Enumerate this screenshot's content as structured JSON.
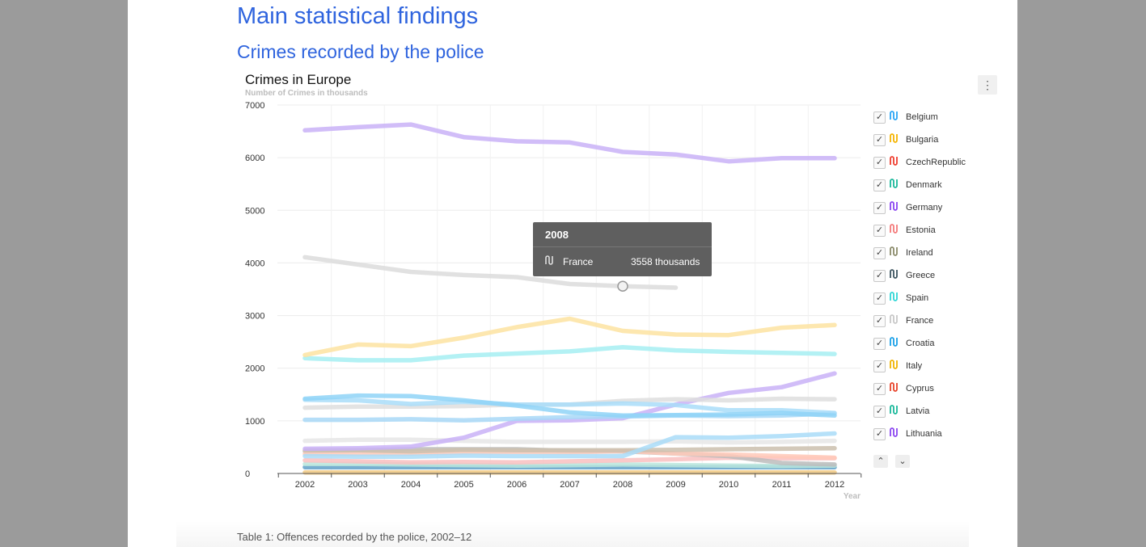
{
  "page": {
    "heading": "Main statistical findings",
    "subheading": "Crimes recorded by the police",
    "caption": "Table 1: Offences recorded by the police, 2002–12"
  },
  "controls": {
    "menu_icon": "vertical-dots-icon",
    "menu_label": "⋮",
    "page_up": "⌃",
    "page_down": "⌄",
    "check": "✓"
  },
  "tooltip": {
    "year": "2008",
    "series": "France",
    "value": "3558 thousands",
    "icon": "line-symbol-icon"
  },
  "colors": {
    "heading": "#2f64de",
    "background": "#9b9b9b",
    "tooltip": "#5f5f5f"
  },
  "chart_data": {
    "type": "line",
    "title": "Crimes in Europe",
    "subtitle": "Number of Crimes in thousands",
    "xlabel": "Year",
    "ylabel": "",
    "ylim": [
      0,
      7000
    ],
    "yticks": [
      0,
      1000,
      2000,
      3000,
      4000,
      5000,
      6000,
      7000
    ],
    "x": [
      2002,
      2003,
      2004,
      2005,
      2006,
      2007,
      2008,
      2009,
      2010,
      2011,
      2012
    ],
    "grid": true,
    "legend_position": "right",
    "legend": [
      {
        "name": "Belgium",
        "color": "#2aa5f5"
      },
      {
        "name": "Bulgaria",
        "color": "#f5b400"
      },
      {
        "name": "CzechRepublic",
        "color": "#ef3e2f"
      },
      {
        "name": "Denmark",
        "color": "#19b89a"
      },
      {
        "name": "Germany",
        "color": "#8a45f0"
      },
      {
        "name": "Estonia",
        "color": "#f47a7a"
      },
      {
        "name": "Ireland",
        "color": "#8a8a6a"
      },
      {
        "name": "Greece",
        "color": "#3d5560"
      },
      {
        "name": "Spain",
        "color": "#2fd6d6"
      },
      {
        "name": "France",
        "color": "#c8c8c8"
      },
      {
        "name": "Croatia",
        "color": "#1aa0e8"
      },
      {
        "name": "Italy",
        "color": "#f0b400"
      },
      {
        "name": "Cyprus",
        "color": "#e8432a"
      },
      {
        "name": "Latvia",
        "color": "#19b89a"
      },
      {
        "name": "Lithuania",
        "color": "#8a45f0"
      }
    ],
    "series": [
      {
        "color": "#c9b1f7",
        "values": [
          6520,
          6580,
          6630,
          6390,
          6310,
          6290,
          6110,
          6060,
          5930,
          5990,
          5990
        ]
      },
      {
        "color": "#dcdcdc",
        "values": [
          4110,
          3970,
          3830,
          3770,
          3730,
          3600,
          3558,
          3530,
          null,
          null,
          null
        ]
      },
      {
        "color": "#fde3a1",
        "values": [
          2250,
          2450,
          2420,
          2580,
          2780,
          2940,
          2710,
          2640,
          2630,
          2770,
          2820
        ]
      },
      {
        "color": "#a6eef2",
        "values": [
          2190,
          2150,
          2150,
          2240,
          2280,
          2320,
          2400,
          2340,
          2310,
          2290,
          2270
        ]
      },
      {
        "color": "#8fd3f7",
        "values": [
          1420,
          1480,
          1470,
          1390,
          1290,
          1160,
          1100,
          1110,
          1120,
          1150,
          1100
        ]
      },
      {
        "color": "#a9ddf9",
        "values": [
          1400,
          1390,
          1320,
          1360,
          1310,
          1310,
          1330,
          1300,
          1200,
          1200,
          1150
        ]
      },
      {
        "color": "#dedede",
        "values": [
          1250,
          1270,
          1270,
          1280,
          1310,
          1310,
          1380,
          1410,
          1390,
          1420,
          1410
        ]
      },
      {
        "color": "#a8d8f7",
        "values": [
          1020,
          1020,
          1030,
          1010,
          1040,
          1070,
          1080,
          1100,
          1090,
          1100,
          1140
        ]
      },
      {
        "color": "#c9b1f7",
        "values": [
          470,
          480,
          510,
          680,
          1000,
          1010,
          1050,
          1310,
          1530,
          1640,
          1900
        ]
      },
      {
        "color": "#a9dcf8",
        "values": [
          330,
          320,
          320,
          340,
          330,
          330,
          330,
          690,
          680,
          710,
          760
        ]
      },
      {
        "color": "#e6e6e6",
        "values": [
          620,
          640,
          640,
          620,
          600,
          600,
          600,
          610,
          590,
          600,
          620
        ]
      },
      {
        "color": "#cbbfae",
        "values": [
          440,
          440,
          420,
          450,
          440,
          440,
          440,
          450,
          460,
          470,
          480
        ]
      },
      {
        "color": "#ffc9b8",
        "values": [
          370,
          370,
          380,
          400,
          410,
          400,
          430,
          380,
          360,
          330,
          300
        ]
      },
      {
        "color": "#bcbcbc",
        "values": [
          420,
          440,
          460,
          460,
          460,
          430,
          420,
          380,
          330,
          200,
          170
        ]
      },
      {
        "color": "#f9c0c0",
        "values": [
          250,
          230,
          210,
          220,
          210,
          230,
          250,
          270,
          300,
          290,
          290
        ]
      },
      {
        "color": "#b9e6dd",
        "values": [
          180,
          180,
          170,
          160,
          150,
          160,
          170,
          160,
          150,
          140,
          150
        ]
      },
      {
        "color": "#5fa0c8",
        "values": [
          120,
          120,
          120,
          120,
          120,
          120,
          120,
          120,
          120,
          120,
          120
        ]
      },
      {
        "color": "#f0c880",
        "values": [
          20,
          20,
          20,
          20,
          20,
          20,
          20,
          20,
          20,
          20,
          20
        ]
      }
    ]
  }
}
